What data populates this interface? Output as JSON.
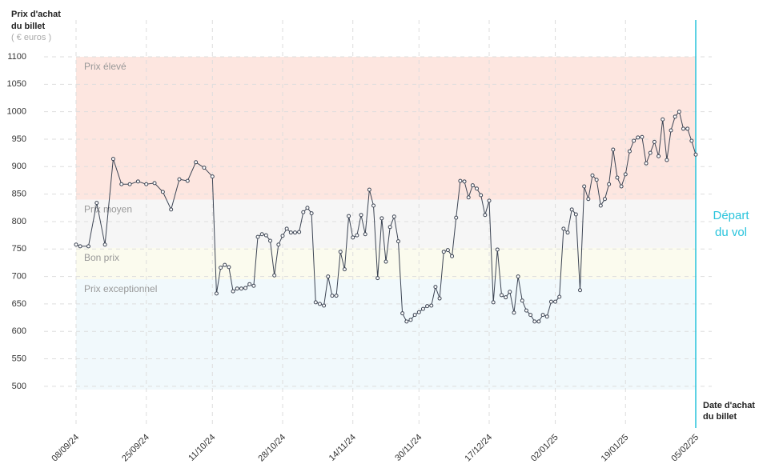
{
  "chart_data": {
    "type": "line",
    "y_label": [
      "Prix d'achat",
      "du billet"
    ],
    "y_unit": "( € euros )",
    "x_label": [
      "Date d'achat",
      "du billet"
    ],
    "annotation": [
      "Départ",
      "du vol"
    ],
    "color": "#3d4554",
    "bands": [
      {
        "name": "Prix élevé",
        "from": 840,
        "to": 1100,
        "color": "#fde6e0"
      },
      {
        "name": "Prix moyen",
        "from": 752,
        "to": 840,
        "color": "#f6f6f6"
      },
      {
        "name": "Bon prix",
        "from": 695,
        "to": 752,
        "color": "#fbfbee"
      },
      {
        "name": "Prix exceptionnel",
        "from": 494,
        "to": 695,
        "color": "#f1f9fc"
      }
    ],
    "ylim": [
      494,
      1100
    ],
    "yticks": [
      500,
      550,
      600,
      650,
      700,
      750,
      800,
      850,
      900,
      950,
      1000,
      1050,
      1100
    ],
    "xlim": [
      "08/09/24",
      "05/02/25"
    ],
    "xticks": [
      "08/09/24",
      "25/09/24",
      "11/10/24",
      "28/10/24",
      "14/11/24",
      "30/11/24",
      "17/12/24",
      "02/01/25",
      "19/01/25",
      "05/02/25"
    ],
    "x": [
      "08/09/24",
      "09/09/24",
      "11/09/24",
      "13/09/24",
      "15/09/24",
      "17/09/24",
      "19/09/24",
      "21/09/24",
      "23/09/24",
      "25/09/24",
      "27/09/24",
      "29/09/24",
      "01/10/24",
      "03/10/24",
      "05/10/24",
      "07/10/24",
      "09/10/24",
      "11/10/24",
      "12/10/24",
      "13/10/24",
      "14/10/24",
      "15/10/24",
      "16/10/24",
      "17/10/24",
      "18/10/24",
      "19/10/24",
      "20/10/24",
      "21/10/24",
      "22/10/24",
      "23/10/24",
      "24/10/24",
      "25/10/24",
      "26/10/24",
      "27/10/24",
      "28/10/24",
      "29/10/24",
      "30/10/24",
      "31/10/24",
      "01/11/24",
      "02/11/24",
      "03/11/24",
      "04/11/24",
      "05/11/24",
      "06/11/24",
      "07/11/24",
      "08/11/24",
      "09/11/24",
      "10/11/24",
      "11/11/24",
      "12/11/24",
      "13/11/24",
      "14/11/24",
      "15/11/24",
      "16/11/24",
      "17/11/24",
      "18/11/24",
      "19/11/24",
      "20/11/24",
      "21/11/24",
      "22/11/24",
      "23/11/24",
      "24/11/24",
      "25/11/24",
      "26/11/24",
      "27/11/24",
      "28/11/24",
      "29/11/24",
      "30/11/24",
      "01/12/24",
      "02/12/24",
      "03/12/24",
      "04/12/24",
      "05/12/24",
      "06/12/24",
      "07/12/24",
      "08/12/24",
      "09/12/24",
      "10/12/24",
      "11/12/24",
      "12/12/24",
      "13/12/24",
      "14/12/24",
      "15/12/24",
      "16/12/24",
      "17/12/24",
      "18/12/24",
      "19/12/24",
      "20/12/24",
      "21/12/24",
      "22/12/24",
      "23/12/24",
      "24/12/24",
      "25/12/24",
      "26/12/24",
      "27/12/24",
      "28/12/24",
      "29/12/24",
      "30/12/24",
      "31/12/24",
      "01/01/25",
      "02/01/25",
      "03/01/25",
      "04/01/25",
      "05/01/25",
      "06/01/25",
      "07/01/25",
      "08/01/25",
      "09/01/25",
      "10/01/25",
      "11/01/25",
      "12/01/25",
      "13/01/25",
      "14/01/25",
      "15/01/25",
      "16/01/25",
      "17/01/25",
      "18/01/25",
      "19/01/25",
      "20/01/25",
      "21/01/25",
      "22/01/25",
      "23/01/25",
      "24/01/25",
      "25/01/25",
      "26/01/25",
      "27/01/25",
      "28/01/25",
      "29/01/25",
      "30/01/25",
      "31/01/25",
      "01/02/25",
      "02/02/25",
      "03/02/25",
      "04/02/25",
      "05/02/25"
    ],
    "values": [
      758,
      755,
      755,
      834,
      758,
      914,
      868,
      868,
      873,
      868,
      870,
      854,
      822,
      877,
      874,
      908,
      898,
      882,
      669,
      716,
      721,
      717,
      673,
      678,
      678,
      679,
      686,
      683,
      772,
      777,
      775,
      765,
      702,
      758,
      774,
      787,
      780,
      780,
      781,
      817,
      825,
      815,
      653,
      650,
      647,
      700,
      665,
      665,
      745,
      713,
      810,
      771,
      775,
      812,
      777,
      858,
      829,
      697,
      806,
      727,
      790,
      809,
      764,
      633,
      618,
      621,
      630,
      635,
      641,
      646,
      647,
      681,
      660,
      745,
      748,
      737,
      807,
      874,
      873,
      844,
      866,
      860,
      848,
      812,
      838,
      653,
      749,
      666,
      662,
      672,
      634,
      700,
      656,
      638,
      630,
      618,
      618,
      630,
      627,
      654,
      654,
      663,
      787,
      780,
      822,
      813,
      675,
      864,
      841,
      884,
      876,
      829,
      841,
      868,
      931,
      880,
      864,
      886,
      928,
      947,
      953,
      954,
      906,
      925,
      945,
      919,
      986,
      912,
      966,
      991,
      1000,
      969,
      969,
      947,
      922
    ]
  }
}
